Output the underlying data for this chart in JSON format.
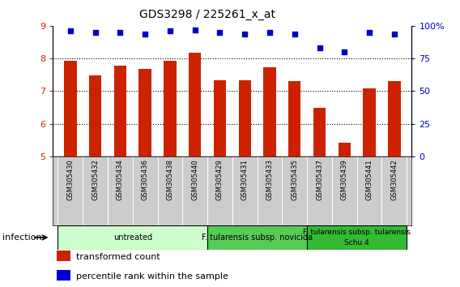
{
  "title": "GDS3298 / 225261_x_at",
  "samples": [
    "GSM305430",
    "GSM305432",
    "GSM305434",
    "GSM305436",
    "GSM305438",
    "GSM305440",
    "GSM305429",
    "GSM305431",
    "GSM305433",
    "GSM305435",
    "GSM305437",
    "GSM305439",
    "GSM305441",
    "GSM305442"
  ],
  "transformed_count": [
    7.93,
    7.48,
    7.77,
    7.68,
    7.93,
    8.18,
    7.33,
    7.33,
    7.74,
    7.31,
    6.48,
    5.43,
    7.08,
    7.31
  ],
  "percentile_rank": [
    96,
    95,
    95,
    94,
    96,
    97,
    95,
    94,
    95,
    94,
    83,
    80,
    95,
    94
  ],
  "bar_color": "#cc2200",
  "dot_color": "#0000cc",
  "ylim_left": [
    5,
    9
  ],
  "ylim_right": [
    0,
    100
  ],
  "yticks_left": [
    5,
    6,
    7,
    8,
    9
  ],
  "yticks_right": [
    0,
    25,
    50,
    75,
    100
  ],
  "yticklabels_right": [
    "0",
    "25",
    "50",
    "75",
    "100%"
  ],
  "groups": [
    {
      "label": "untreated",
      "start": 0,
      "end": 6,
      "color": "#ccffcc"
    },
    {
      "label": "F. tularensis subsp. novicida",
      "start": 6,
      "end": 10,
      "color": "#55cc55"
    },
    {
      "label": "F. tularensis subsp. tularensis\nSchu 4",
      "start": 10,
      "end": 14,
      "color": "#33bb33"
    }
  ],
  "infection_label": "infection",
  "legend_items": [
    {
      "color": "#cc2200",
      "label": "transformed count"
    },
    {
      "color": "#0000cc",
      "label": "percentile rank within the sample"
    }
  ],
  "bar_width": 0.5,
  "label_bg": "#cccccc",
  "chart_bg": "#ffffff",
  "group_border": "#000000"
}
